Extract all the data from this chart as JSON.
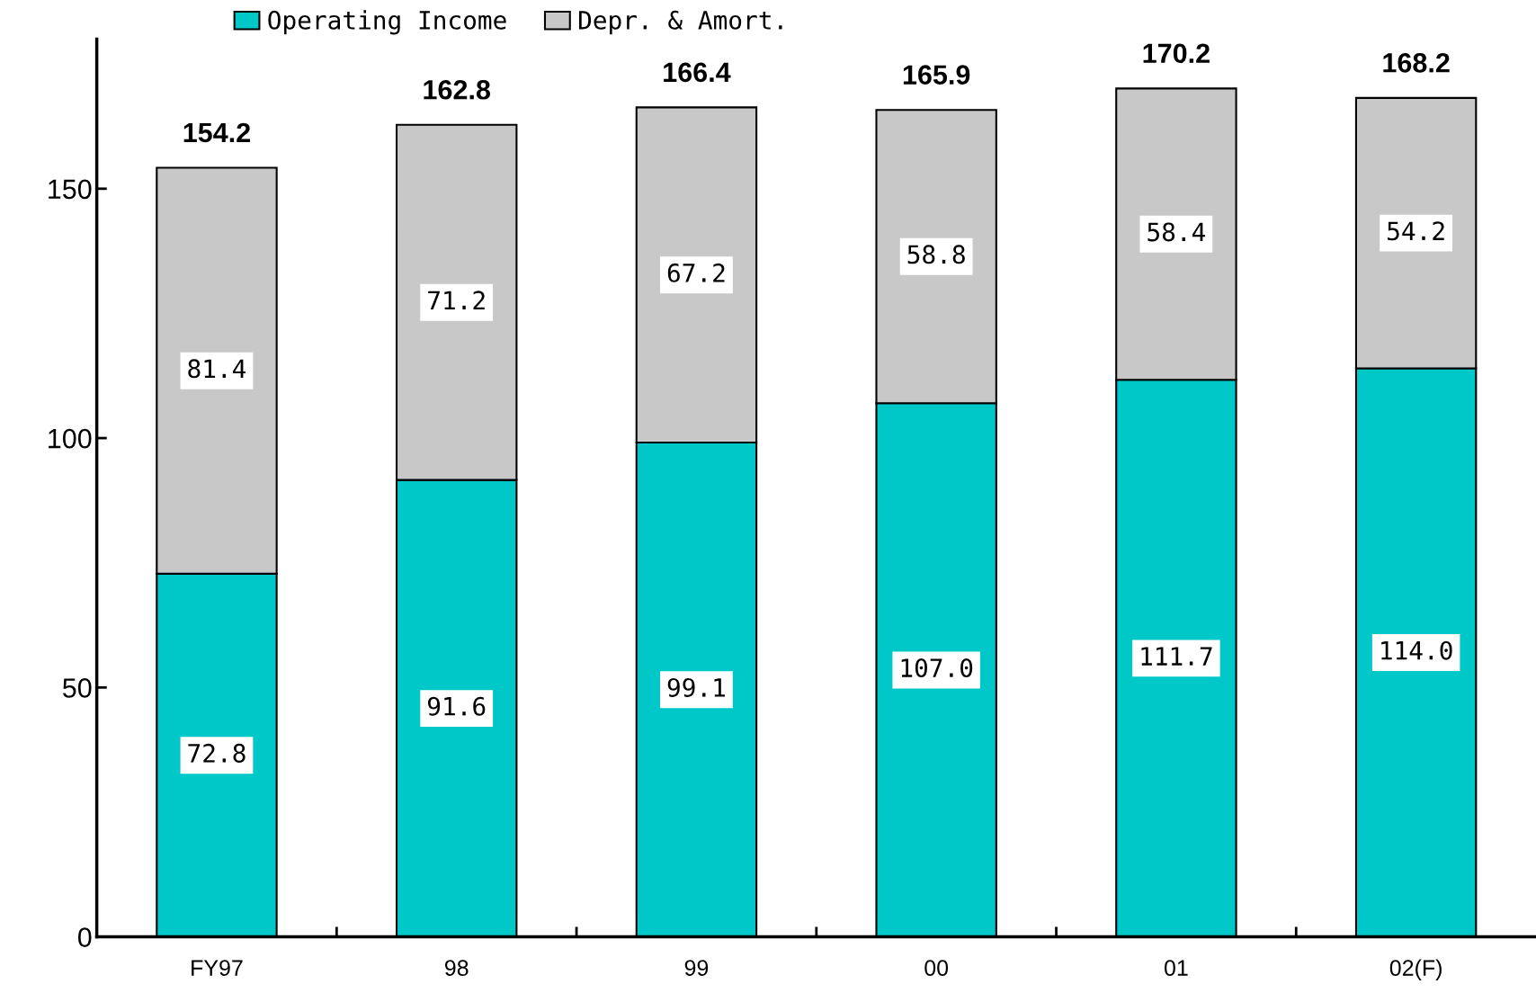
{
  "chart_data": {
    "type": "bar",
    "stacked": true,
    "categories": [
      "FY97",
      "98",
      "99",
      "00",
      "01",
      "02(F)"
    ],
    "series": [
      {
        "name": "Operating Income",
        "color": "#00c8c8",
        "values": [
          72.8,
          91.6,
          99.1,
          107.0,
          111.7,
          114.0
        ],
        "value_labels": [
          "72.8",
          "91.6",
          "99.1",
          "107.0",
          "111.7",
          "114.0"
        ]
      },
      {
        "name": "Depr. & Amort.",
        "color": "#c8c8c8",
        "values": [
          81.4,
          71.2,
          67.2,
          58.8,
          58.4,
          54.2
        ],
        "value_labels": [
          "81.4",
          "71.2",
          "67.2",
          "58.8",
          "58.4",
          "54.2"
        ]
      }
    ],
    "totals": [
      "154.2",
      "162.8",
      "166.4",
      "165.9",
      "170.2",
      "168.2"
    ],
    "ylim": [
      0,
      180
    ],
    "yticks": [
      0,
      50,
      100,
      150
    ],
    "grid": false,
    "legend": "top left"
  }
}
